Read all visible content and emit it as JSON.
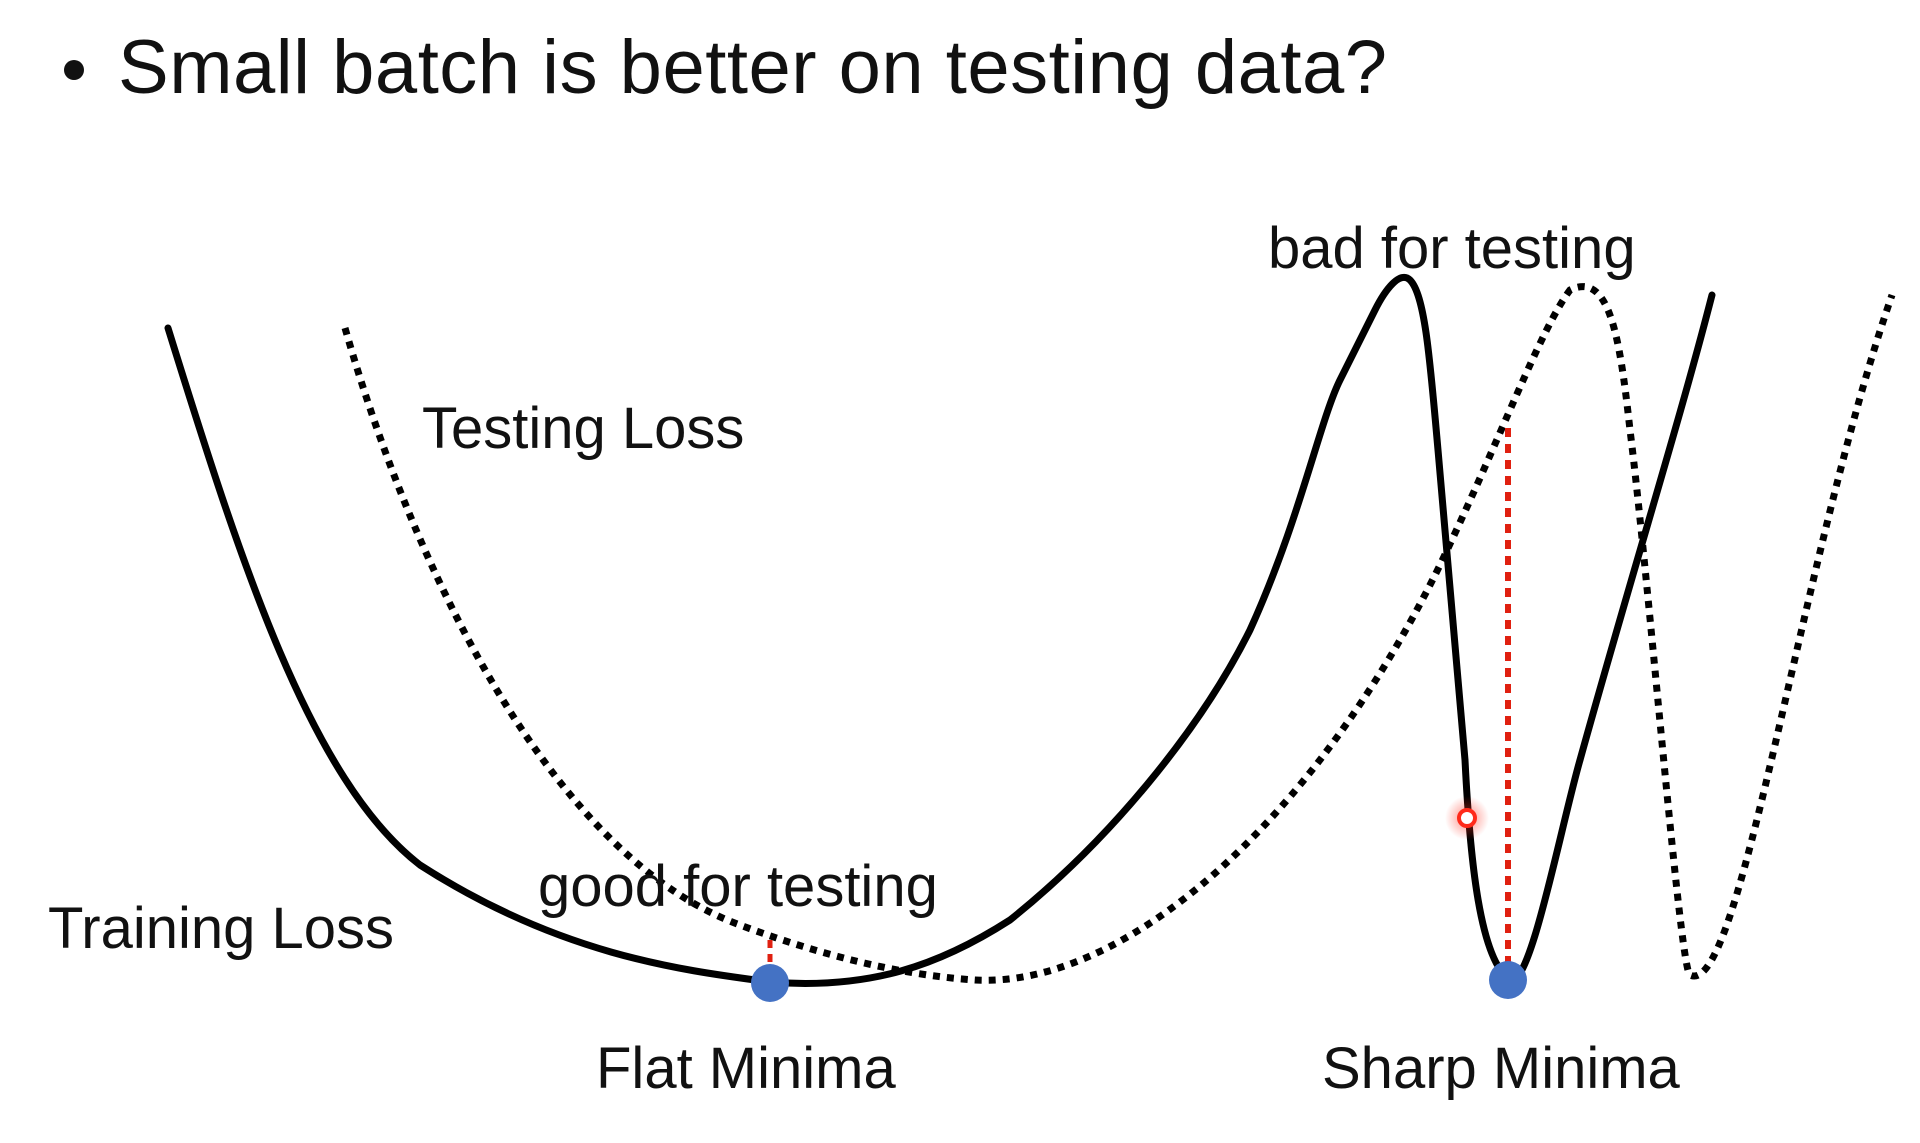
{
  "slide": {
    "bullet": "Small batch is better on testing data?"
  },
  "diagram": {
    "labels": {
      "testing_loss": "Testing Loss",
      "training_loss": "Training Loss",
      "good_for_testing": "good for testing",
      "bad_for_testing": "bad for testing",
      "flat_minima": "Flat Minima",
      "sharp_minima": "Sharp Minima"
    },
    "colors": {
      "curve": "#000000",
      "minima_marker": "#4472C4",
      "gap_line": "#E02010",
      "highlight": "#FF2A1A"
    }
  }
}
